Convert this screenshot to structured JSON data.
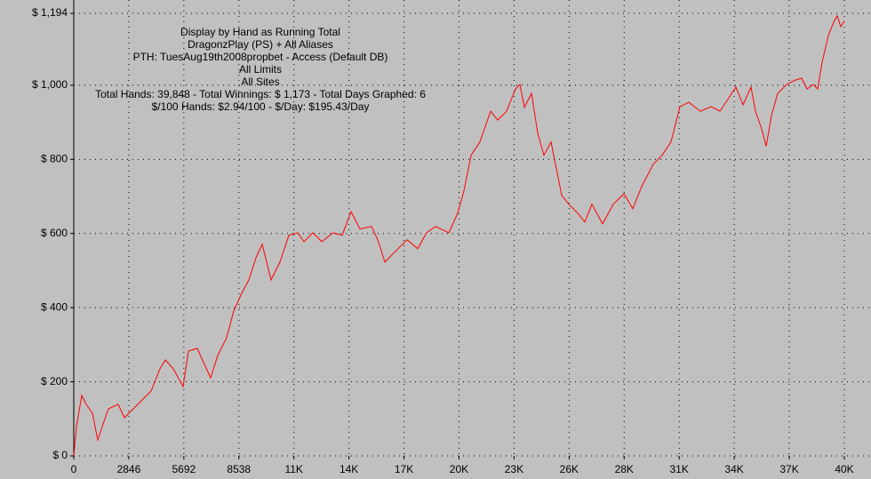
{
  "chart_data": {
    "type": "line",
    "title": "Display by Hand as Running Total",
    "subtitle": [
      "DragonzPlay (PS) + All Aliases",
      "PTH: TuesAug19th2008propbet - Access (Default DB)",
      "All Limits",
      "All Sites",
      "Total Hands: 39,848 - Total Winnings: $ 1,173 - Total Days Graphed: 6",
      "$/100 Hands: $2.94/100 - $/Day: $195.43/Day"
    ],
    "xlim": [
      0,
      39848
    ],
    "ylim": [
      0,
      1194
    ],
    "xticks": [
      0,
      2846,
      5692,
      8538,
      {
        "value": 11385,
        "label": "11K"
      },
      {
        "value": 14231,
        "label": "14K"
      },
      {
        "value": 17077,
        "label": "17K"
      },
      {
        "value": 19923,
        "label": "20K"
      },
      {
        "value": 22770,
        "label": "23K"
      },
      {
        "value": 25616,
        "label": "26K"
      },
      {
        "value": 28462,
        "label": "28K"
      },
      {
        "value": 31308,
        "label": "31K"
      },
      {
        "value": 34154,
        "label": "34K"
      },
      {
        "value": 37001,
        "label": "37K"
      },
      {
        "value": 39848,
        "label": "40K"
      }
    ],
    "yticks": [
      {
        "value": 0,
        "label": "$ 0"
      },
      {
        "value": 200,
        "label": "$ 200"
      },
      {
        "value": 400,
        "label": "$ 400"
      },
      {
        "value": 600,
        "label": "$ 600"
      },
      {
        "value": 800,
        "label": "$ 800"
      },
      {
        "value": 1000,
        "label": "$ 1,000"
      },
      {
        "value": 1194,
        "label": "$ 1,194"
      }
    ],
    "grid": true,
    "series": [
      {
        "name": "Running Total",
        "color": "#ff0000",
        "x": [
          0,
          138,
          414,
          643,
          965,
          1241,
          1471,
          1792,
          2298,
          2620,
          3079,
          3539,
          3999,
          4458,
          4734,
          5148,
          5653,
          5929,
          6389,
          6756,
          7078,
          7446,
          7905,
          8273,
          8687,
          9054,
          9422,
          9744,
          10203,
          10663,
          11122,
          11582,
          11904,
          12364,
          12823,
          13421,
          13880,
          14340,
          14800,
          15397,
          15719,
          16087,
          16638,
          17236,
          17787,
          18247,
          18706,
          19396,
          19855,
          20177,
          20544,
          21004,
          21555,
          21923,
          22382,
          22842,
          23072,
          23302,
          23669,
          23991,
          24313,
          24681,
          24957,
          25232,
          25600,
          26059,
          26427,
          26795,
          27346,
          27898,
          28449,
          28909,
          29368,
          29966,
          30425,
          30885,
          31344,
          31804,
          32401,
          32953,
          33412,
          33872,
          34240,
          34607,
          35021,
          35251,
          35572,
          35802,
          36078,
          36400,
          36859,
          37319,
          37641,
          37917,
          38239,
          38469,
          38699,
          39020,
          39296,
          39480,
          39664,
          39848
        ],
        "values": [
          0,
          79,
          163,
          139,
          115,
          43,
          79,
          127,
          139,
          103,
          127,
          151,
          175,
          235,
          259,
          235,
          187,
          283,
          290,
          247,
          211,
          271,
          319,
          391,
          439,
          475,
          535,
          571,
          475,
          523,
          595,
          602,
          578,
          602,
          578,
          602,
          595,
          659,
          612,
          619,
          583,
          523,
          552,
          583,
          559,
          602,
          619,
          602,
          655,
          715,
          811,
          847,
          930,
          906,
          930,
          990,
          1002,
          940,
          978,
          871,
          811,
          847,
          775,
          703,
          679,
          655,
          631,
          679,
          626,
          679,
          707,
          667,
          727,
          787,
          811,
          847,
          942,
          954,
          930,
          942,
          930,
          966,
          995,
          947,
          995,
          930,
          882,
          835,
          918,
          978,
          1002,
          1014,
          1019,
          990,
          1002,
          990,
          1062,
          1134,
          1170,
          1187,
          1158,
          1173
        ]
      }
    ]
  }
}
